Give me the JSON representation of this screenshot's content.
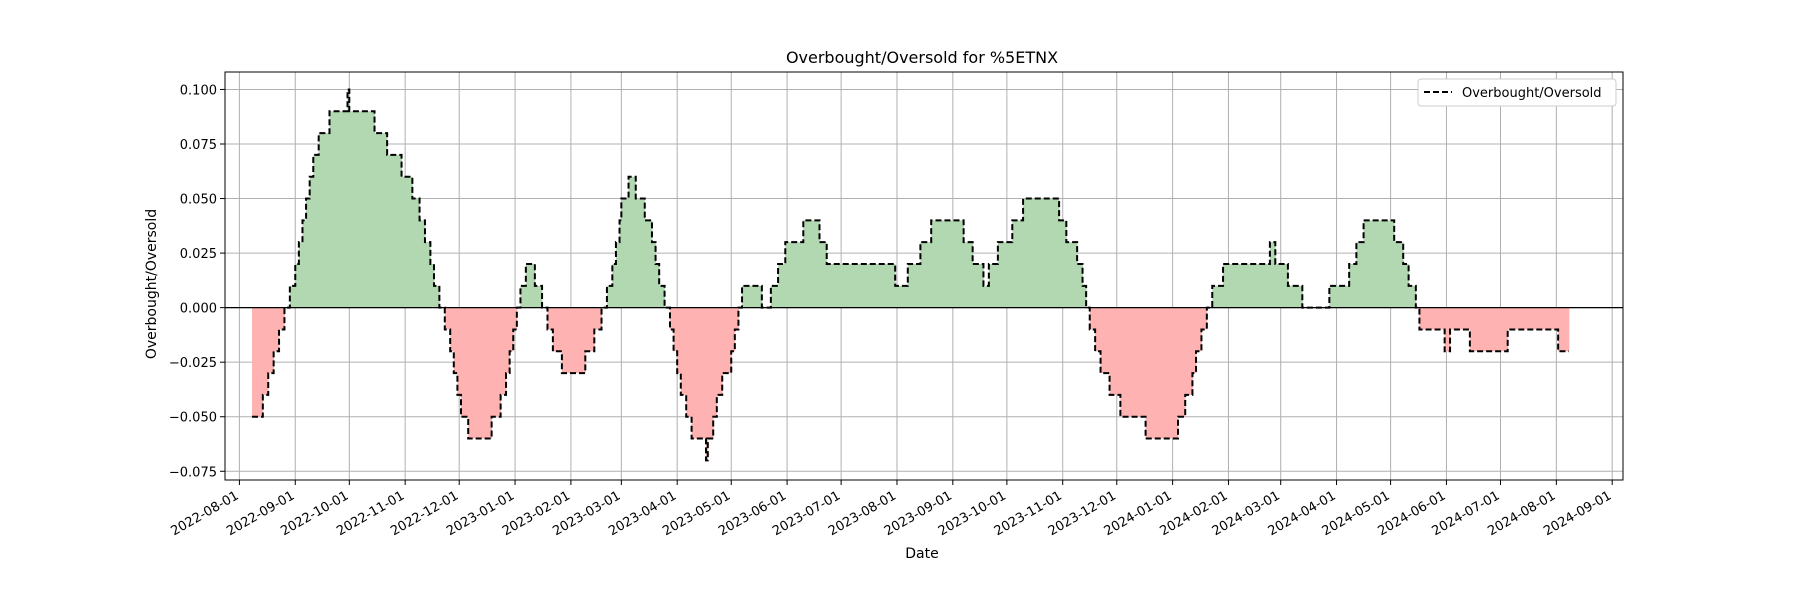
{
  "chart_data": {
    "type": "area",
    "title": "Overbought/Oversold for %5ETNX",
    "xlabel": "Date",
    "ylabel": "Overbought/Oversold",
    "x_ticks": [
      "2022-08-01",
      "2022-09-01",
      "2022-10-01",
      "2022-11-01",
      "2022-12-01",
      "2023-01-01",
      "2023-02-01",
      "2023-03-01",
      "2023-04-01",
      "2023-05-01",
      "2023-06-01",
      "2023-07-01",
      "2023-08-01",
      "2023-09-01",
      "2023-10-01",
      "2023-11-01",
      "2023-12-01",
      "2024-01-01",
      "2024-02-01",
      "2024-03-01",
      "2024-04-01",
      "2024-05-01",
      "2024-06-01",
      "2024-07-01",
      "2024-08-01",
      "2024-09-01"
    ],
    "y_ticks": [
      "0.100",
      "0.075",
      "0.050",
      "0.025",
      "0.000",
      "−0.025",
      "−0.050",
      "−0.075"
    ],
    "y_tick_values": [
      0.1,
      0.075,
      0.05,
      0.025,
      0,
      -0.025,
      -0.05,
      -0.075
    ],
    "xlim": [
      "2022-07-24",
      "2024-09-07"
    ],
    "ylim": [
      -0.079,
      0.108
    ],
    "grid": true,
    "legend": {
      "position": "top-right",
      "label": "Overbought/Oversold"
    },
    "colors": {
      "line": "#000000",
      "positive_fill": "#b2d8b2",
      "negative_fill": "#ffb2b2",
      "grid": "#b0b0b0",
      "zero_line": "#000000"
    },
    "series": [
      {
        "name": "Overbought/Oversold",
        "style": "dashed-step",
        "points": [
          [
            "2022-08-08",
            -0.05
          ],
          [
            "2022-08-14",
            -0.04
          ],
          [
            "2022-08-17",
            -0.03
          ],
          [
            "2022-08-20",
            -0.02
          ],
          [
            "2022-08-23",
            -0.01
          ],
          [
            "2022-08-26",
            0
          ],
          [
            "2022-08-29",
            0.01
          ],
          [
            "2022-09-01",
            0.02
          ],
          [
            "2022-09-03",
            0.03
          ],
          [
            "2022-09-05",
            0.04
          ],
          [
            "2022-09-07",
            0.05
          ],
          [
            "2022-09-09",
            0.06
          ],
          [
            "2022-09-11",
            0.07
          ],
          [
            "2022-09-14",
            0.08
          ],
          [
            "2022-09-20",
            0.09
          ],
          [
            "2022-09-30",
            0.1
          ],
          [
            "2022-10-01",
            0.09
          ],
          [
            "2022-10-15",
            0.08
          ],
          [
            "2022-10-22",
            0.07
          ],
          [
            "2022-10-30",
            0.06
          ],
          [
            "2022-11-05",
            0.05
          ],
          [
            "2022-11-09",
            0.04
          ],
          [
            "2022-11-12",
            0.03
          ],
          [
            "2022-11-15",
            0.02
          ],
          [
            "2022-11-17",
            0.01
          ],
          [
            "2022-11-20",
            0
          ],
          [
            "2022-11-23",
            -0.01
          ],
          [
            "2022-11-26",
            -0.02
          ],
          [
            "2022-11-28",
            -0.03
          ],
          [
            "2022-11-30",
            -0.04
          ],
          [
            "2022-12-02",
            -0.05
          ],
          [
            "2022-12-06",
            -0.06
          ],
          [
            "2022-12-19",
            -0.05
          ],
          [
            "2022-12-24",
            -0.04
          ],
          [
            "2022-12-27",
            -0.03
          ],
          [
            "2022-12-29",
            -0.02
          ],
          [
            "2022-12-31",
            -0.01
          ],
          [
            "2023-01-02",
            0
          ],
          [
            "2023-01-04",
            0.01
          ],
          [
            "2023-01-07",
            0.02
          ],
          [
            "2023-01-12",
            0.01
          ],
          [
            "2023-01-16",
            0
          ],
          [
            "2023-01-19",
            -0.01
          ],
          [
            "2023-01-22",
            -0.02
          ],
          [
            "2023-01-27",
            -0.03
          ],
          [
            "2023-02-09",
            -0.02
          ],
          [
            "2023-02-14",
            -0.01
          ],
          [
            "2023-02-18",
            0
          ],
          [
            "2023-02-21",
            0.01
          ],
          [
            "2023-02-24",
            0.02
          ],
          [
            "2023-02-26",
            0.03
          ],
          [
            "2023-02-28",
            0.04
          ],
          [
            "2023-03-01",
            0.05
          ],
          [
            "2023-03-05",
            0.06
          ],
          [
            "2023-03-09",
            0.05
          ],
          [
            "2023-03-14",
            0.04
          ],
          [
            "2023-03-18",
            0.03
          ],
          [
            "2023-03-20",
            0.02
          ],
          [
            "2023-03-22",
            0.01
          ],
          [
            "2023-03-25",
            0
          ],
          [
            "2023-03-28",
            -0.01
          ],
          [
            "2023-03-30",
            -0.02
          ],
          [
            "2023-04-01",
            -0.03
          ],
          [
            "2023-04-03",
            -0.04
          ],
          [
            "2023-04-06",
            -0.05
          ],
          [
            "2023-04-09",
            -0.06
          ],
          [
            "2023-04-17",
            -0.07
          ],
          [
            "2023-04-18",
            -0.06
          ],
          [
            "2023-04-21",
            -0.05
          ],
          [
            "2023-04-23",
            -0.04
          ],
          [
            "2023-04-26",
            -0.03
          ],
          [
            "2023-05-01",
            -0.02
          ],
          [
            "2023-05-03",
            -0.01
          ],
          [
            "2023-05-05",
            0
          ],
          [
            "2023-05-07",
            0.01
          ],
          [
            "2023-05-18",
            0
          ],
          [
            "2023-05-23",
            0.01
          ],
          [
            "2023-05-27",
            0.02
          ],
          [
            "2023-05-31",
            0.03
          ],
          [
            "2023-06-10",
            0.04
          ],
          [
            "2023-06-19",
            0.03
          ],
          [
            "2023-06-23",
            0.02
          ],
          [
            "2023-07-31",
            0.01
          ],
          [
            "2023-08-07",
            0.02
          ],
          [
            "2023-08-14",
            0.03
          ],
          [
            "2023-08-20",
            0.04
          ],
          [
            "2023-09-07",
            0.03
          ],
          [
            "2023-09-12",
            0.02
          ],
          [
            "2023-09-18",
            0.01
          ],
          [
            "2023-09-21",
            0.02
          ],
          [
            "2023-09-26",
            0.03
          ],
          [
            "2023-10-04",
            0.04
          ],
          [
            "2023-10-10",
            0.05
          ],
          [
            "2023-10-30",
            0.04
          ],
          [
            "2023-11-03",
            0.03
          ],
          [
            "2023-11-09",
            0.02
          ],
          [
            "2023-11-12",
            0.01
          ],
          [
            "2023-11-14",
            0
          ],
          [
            "2023-11-16",
            -0.01
          ],
          [
            "2023-11-19",
            -0.02
          ],
          [
            "2023-11-22",
            -0.03
          ],
          [
            "2023-11-27",
            -0.04
          ],
          [
            "2023-12-03",
            -0.05
          ],
          [
            "2023-12-17",
            -0.06
          ],
          [
            "2024-01-04",
            -0.05
          ],
          [
            "2024-01-08",
            -0.04
          ],
          [
            "2024-01-12",
            -0.03
          ],
          [
            "2024-01-14",
            -0.02
          ],
          [
            "2024-01-17",
            -0.01
          ],
          [
            "2024-01-20",
            0
          ],
          [
            "2024-01-23",
            0.01
          ],
          [
            "2024-01-29",
            0.02
          ],
          [
            "2024-02-24",
            0.03
          ],
          [
            "2024-02-27",
            0.02
          ],
          [
            "2024-03-05",
            0.01
          ],
          [
            "2024-03-13",
            0
          ],
          [
            "2024-03-28",
            0.01
          ],
          [
            "2024-04-08",
            0.02
          ],
          [
            "2024-04-12",
            0.03
          ],
          [
            "2024-04-16",
            0.04
          ],
          [
            "2024-05-03",
            0.03
          ],
          [
            "2024-05-08",
            0.02
          ],
          [
            "2024-05-11",
            0.01
          ],
          [
            "2024-05-15",
            0
          ],
          [
            "2024-05-17",
            -0.01
          ],
          [
            "2024-05-31",
            -0.02
          ],
          [
            "2024-06-03",
            -0.01
          ],
          [
            "2024-06-14",
            -0.02
          ],
          [
            "2024-07-05",
            -0.01
          ],
          [
            "2024-08-02",
            -0.02
          ],
          [
            "2024-08-08",
            -0.02
          ]
        ]
      }
    ]
  }
}
